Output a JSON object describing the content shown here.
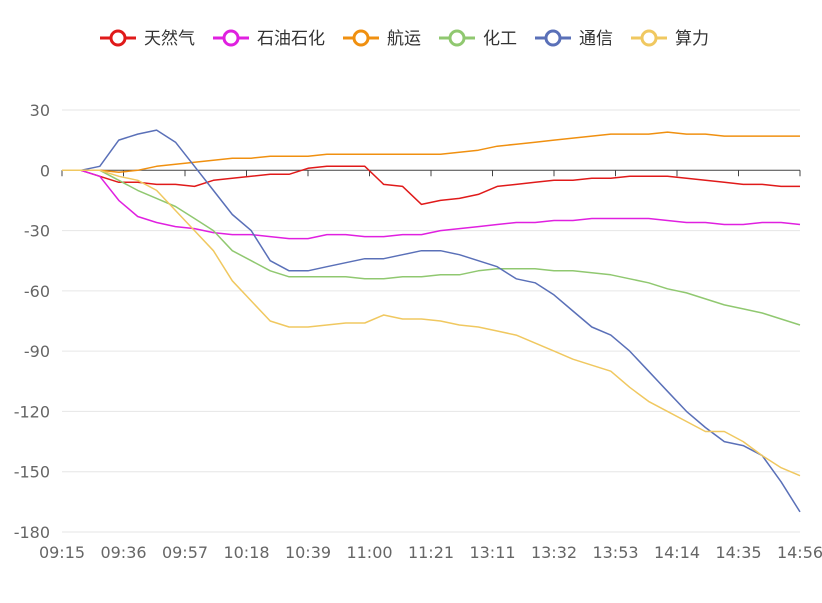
{
  "colors": {
    "grid": "#e6e6e6",
    "axis": "#444444",
    "label": "#666666"
  },
  "chart_data": {
    "type": "line",
    "title": "",
    "xlabel": "",
    "ylabel": "",
    "ylim": [
      -180,
      30
    ],
    "yticks": [
      30,
      0,
      -30,
      -60,
      -90,
      -120,
      -150,
      -180
    ],
    "xticks": [
      "09:15",
      "09:36",
      "09:57",
      "10:18",
      "10:39",
      "11:00",
      "11:21",
      "13:11",
      "13:32",
      "13:53",
      "14:14",
      "14:35",
      "14:56"
    ],
    "grid": true,
    "legend_position": "top",
    "x": [
      "09:15",
      "09:20",
      "09:25",
      "09:30",
      "09:36",
      "09:40",
      "09:45",
      "09:50",
      "09:57",
      "10:05",
      "10:10",
      "10:18",
      "10:25",
      "10:30",
      "10:39",
      "10:45",
      "10:50",
      "11:00",
      "11:05",
      "11:10",
      "11:21",
      "11:25",
      "11:30",
      "13:11",
      "13:15",
      "13:20",
      "13:32",
      "13:40",
      "13:45",
      "13:53",
      "14:00",
      "14:05",
      "14:14",
      "14:20",
      "14:25",
      "14:35",
      "14:40",
      "14:45",
      "14:50",
      "14:56"
    ],
    "series": [
      {
        "name": "天然气",
        "color": "#e01a1a",
        "values": [
          0,
          0,
          -3,
          -6,
          -6,
          -7,
          -7,
          -8,
          -5,
          -4,
          -3,
          -2,
          -2,
          1,
          2,
          2,
          2,
          -7,
          -8,
          -17,
          -15,
          -14,
          -12,
          -8,
          -7,
          -6,
          -5,
          -5,
          -4,
          -4,
          -3,
          -3,
          -3,
          -4,
          -5,
          -6,
          -7,
          -7,
          -8,
          -8
        ]
      },
      {
        "name": "石油石化",
        "color": "#e020e0",
        "values": [
          0,
          0,
          -3,
          -15,
          -23,
          -26,
          -28,
          -29,
          -31,
          -32,
          -32,
          -33,
          -34,
          -34,
          -32,
          -32,
          -33,
          -33,
          -32,
          -32,
          -30,
          -29,
          -28,
          -27,
          -26,
          -26,
          -25,
          -25,
          -24,
          -24,
          -24,
          -24,
          -25,
          -26,
          -26,
          -27,
          -27,
          -26,
          -26,
          -27
        ]
      },
      {
        "name": "航运",
        "color": "#f09010",
        "values": [
          0,
          0,
          0,
          -1,
          0,
          2,
          3,
          4,
          5,
          6,
          6,
          7,
          7,
          7,
          8,
          8,
          8,
          8,
          8,
          8,
          8,
          9,
          10,
          12,
          13,
          14,
          15,
          16,
          17,
          18,
          18,
          18,
          19,
          18,
          18,
          17,
          17,
          17,
          17,
          17
        ]
      },
      {
        "name": "化工",
        "color": "#90c870",
        "values": [
          0,
          0,
          0,
          -5,
          -10,
          -14,
          -18,
          -24,
          -30,
          -40,
          -45,
          -50,
          -53,
          -53,
          -53,
          -53,
          -54,
          -54,
          -53,
          -53,
          -52,
          -52,
          -50,
          -49,
          -49,
          -49,
          -50,
          -50,
          -51,
          -52,
          -54,
          -56,
          -59,
          -61,
          -64,
          -67,
          -69,
          -71,
          -74,
          -77
        ]
      },
      {
        "name": "通信",
        "color": "#5a70b8",
        "values": [
          0,
          0,
          2,
          15,
          18,
          20,
          14,
          2,
          -10,
          -22,
          -30,
          -45,
          -50,
          -50,
          -48,
          -46,
          -44,
          -44,
          -42,
          -40,
          -40,
          -42,
          -45,
          -48,
          -54,
          -56,
          -62,
          -70,
          -78,
          -82,
          -90,
          -100,
          -110,
          -120,
          -128,
          -135,
          -137,
          -142,
          -155,
          -170
        ]
      },
      {
        "name": "算力",
        "color": "#f0c860",
        "values": [
          0,
          0,
          0,
          -3,
          -5,
          -10,
          -20,
          -30,
          -40,
          -55,
          -65,
          -75,
          -78,
          -78,
          -77,
          -76,
          -76,
          -72,
          -74,
          -74,
          -75,
          -77,
          -78,
          -80,
          -82,
          -86,
          -90,
          -94,
          -97,
          -100,
          -108,
          -115,
          -120,
          -125,
          -130,
          -130,
          -135,
          -142,
          -148,
          -152
        ]
      }
    ]
  }
}
